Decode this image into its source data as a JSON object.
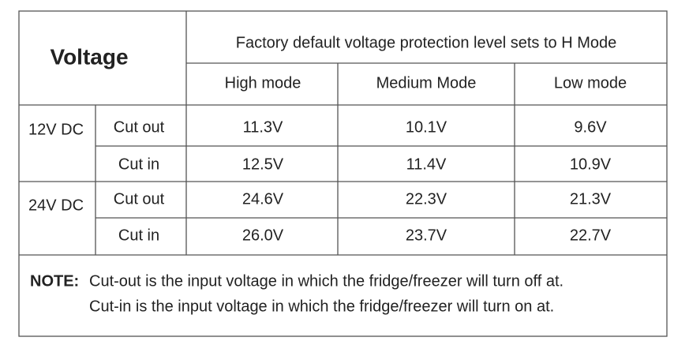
{
  "header": {
    "voltage": "Voltage",
    "title": "Factory default voltage protection level sets to H Mode",
    "modes": [
      "High mode",
      "Medium Mode",
      "Low mode"
    ]
  },
  "groups": [
    {
      "label": "12V DC",
      "rows": [
        {
          "type": "Cut out",
          "values": [
            "11.3V",
            "10.1V",
            "9.6V"
          ]
        },
        {
          "type": "Cut in",
          "values": [
            "12.5V",
            "11.4V",
            "10.9V"
          ]
        }
      ]
    },
    {
      "label": "24V DC",
      "rows": [
        {
          "type": "Cut out",
          "values": [
            "24.6V",
            "22.3V",
            "21.3V"
          ]
        },
        {
          "type": "Cut in",
          "values": [
            "26.0V",
            "23.7V",
            "22.7V"
          ]
        }
      ]
    }
  ],
  "note": {
    "label": "NOTE:",
    "lines": [
      "Cut-out is the input voltage in which the fridge/freezer will turn off at.",
      "Cut-in is the input voltage in which the fridge/freezer will turn on at."
    ]
  }
}
